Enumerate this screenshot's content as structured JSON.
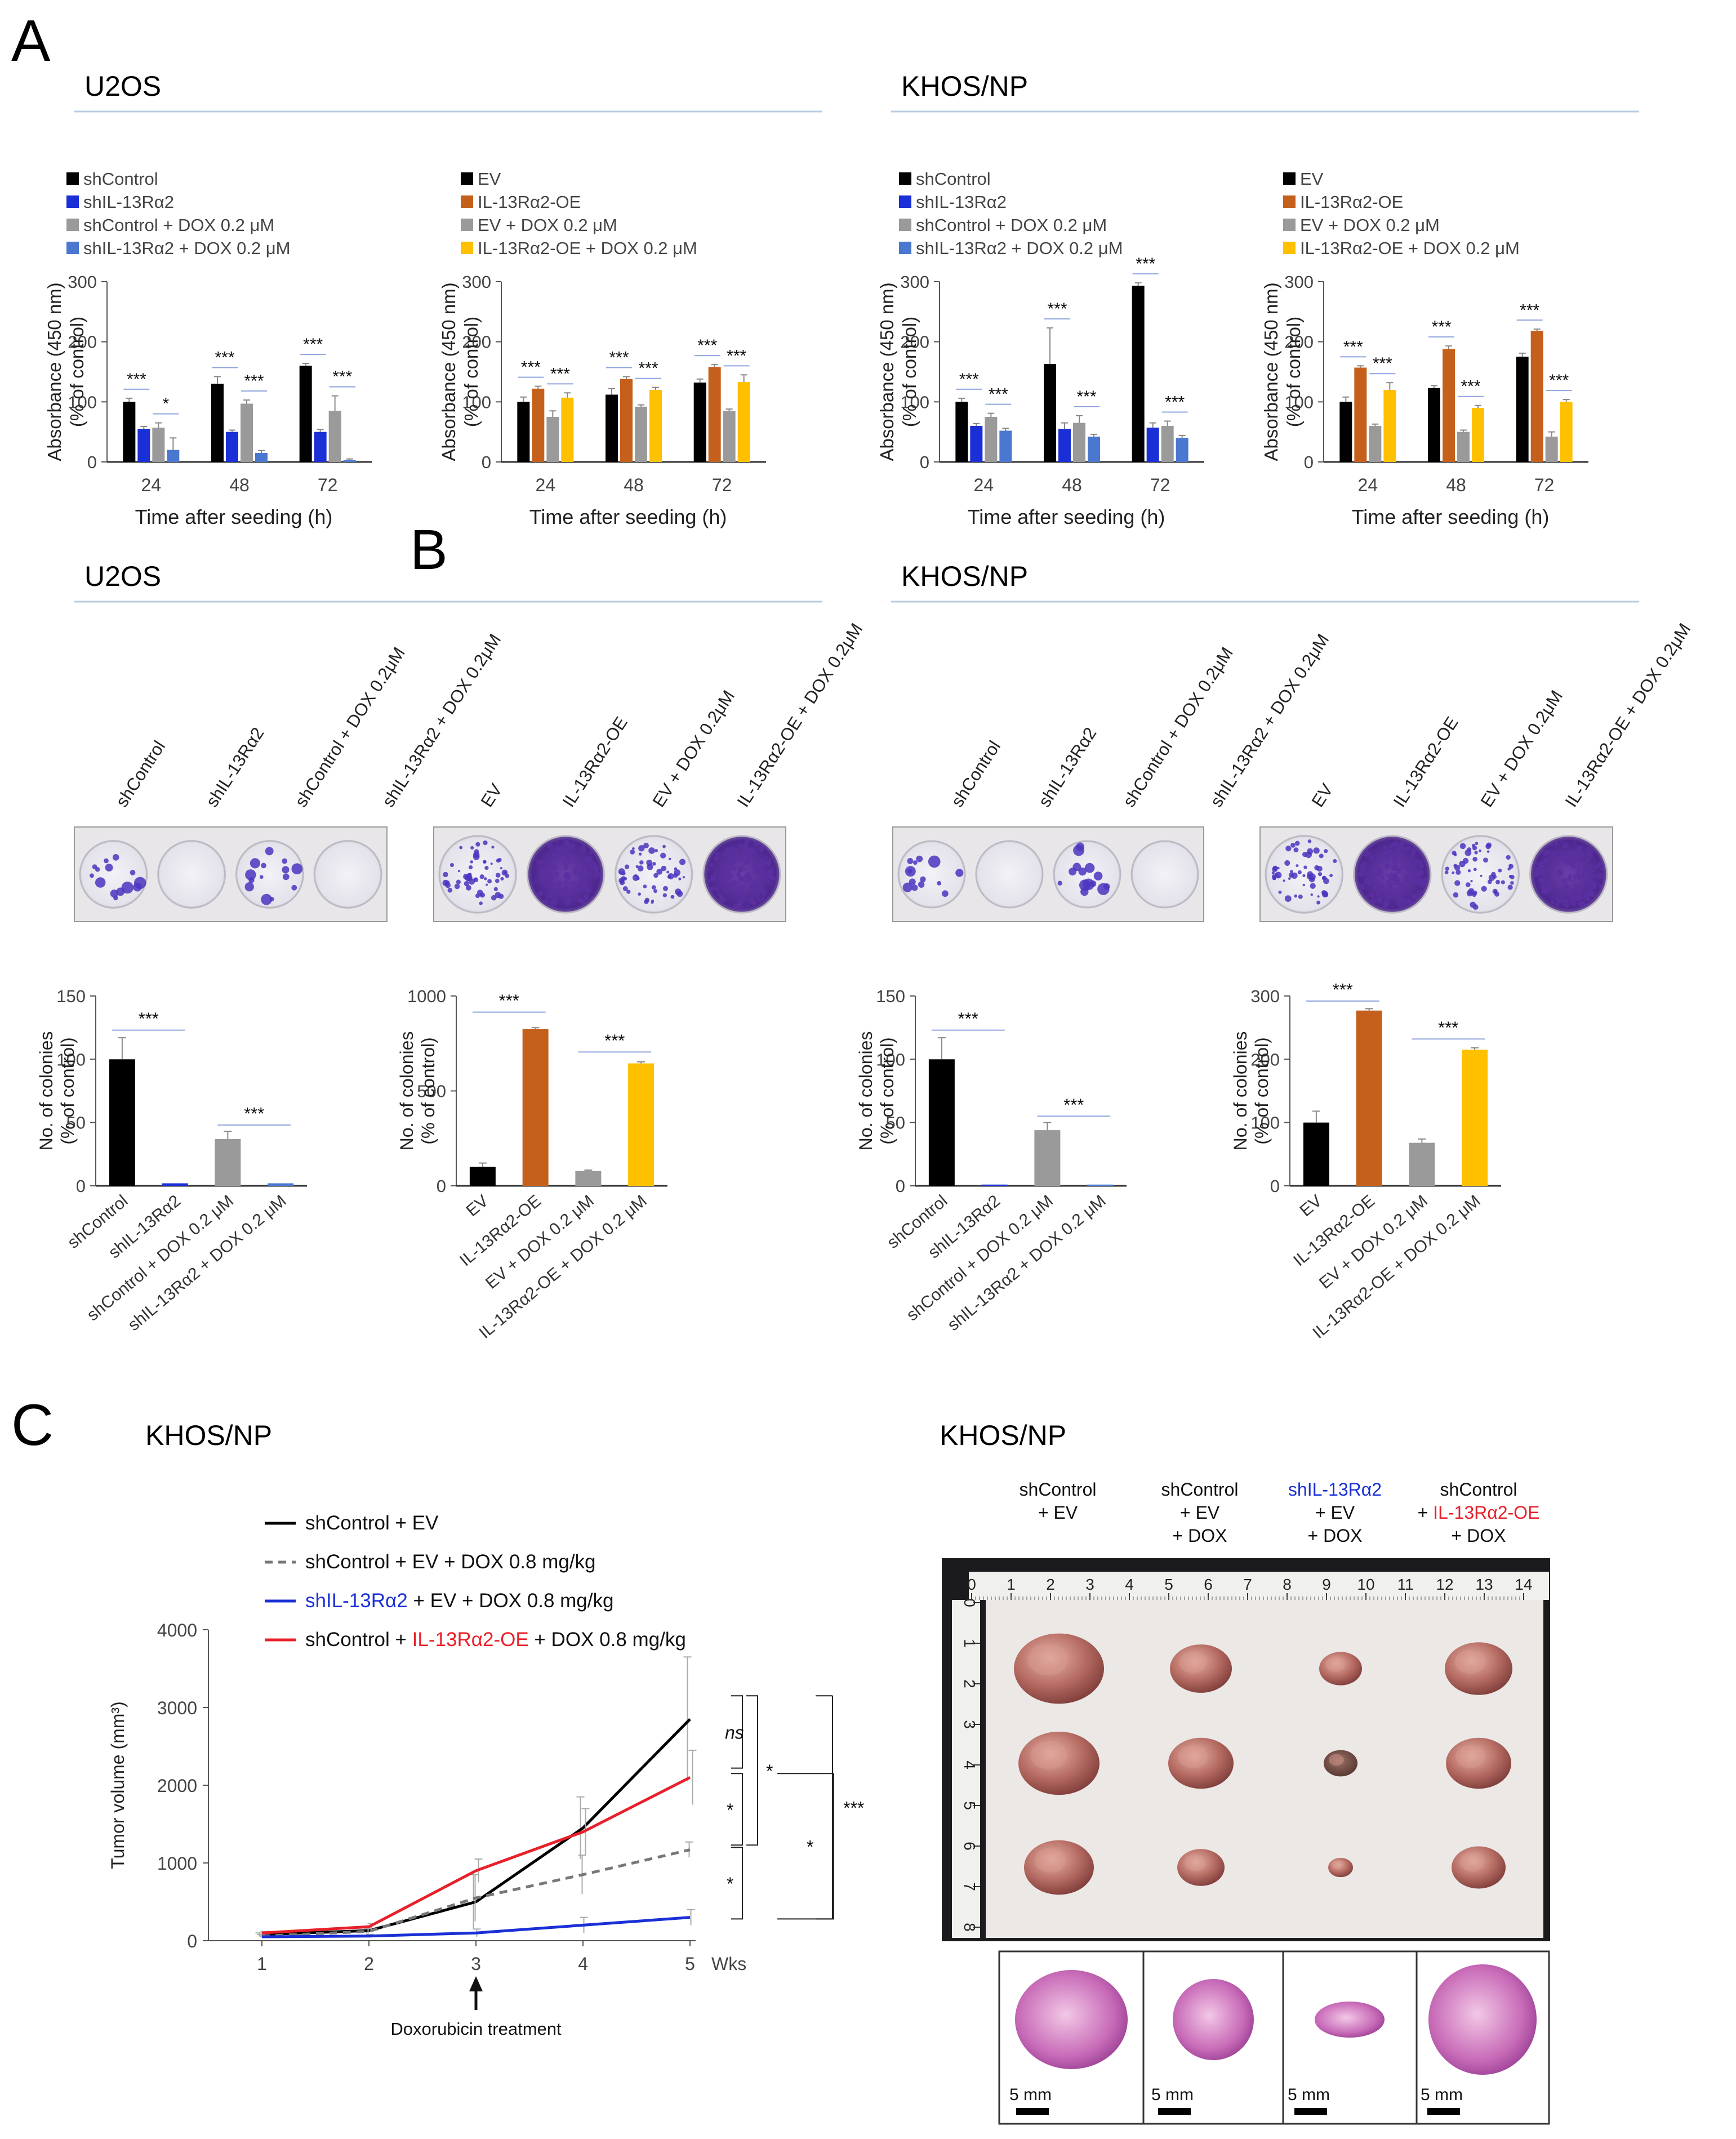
{
  "panel_letters": {
    "a": "A",
    "b": "B",
    "c": "C"
  },
  "headers": {
    "u2os": "U2OS",
    "khos": "KHOS/NP"
  },
  "absorbance_axis": {
    "ylabel1": "Absorbance (450 nm)",
    "ylabel2": "(% of control)",
    "xlabel": "Time after seeding (h)",
    "yticks": [
      "0",
      "100",
      "200",
      "300"
    ],
    "xticks": [
      "24",
      "48",
      "72"
    ]
  },
  "colony_axis": {
    "ylabel1": "No. of colonies",
    "ylabel2": "(% of control)"
  },
  "sig": {
    "three": "***",
    "one": "*",
    "ns": "ns"
  },
  "colors": {
    "black": "#000000",
    "blue": "#1a2fd6",
    "gray": "#9a9a9a",
    "lightblue": "#4a78d0",
    "orange": "#c5601c",
    "yellow": "#ffc000",
    "red": "#e8202a",
    "sig_line": "#8fa4dc"
  },
  "legend_sh": [
    "shControl",
    "shIL-13Rα2",
    "shControl + DOX 0.2 μM",
    "shIL-13Rα2 + DOX 0.2 μM"
  ],
  "legend_oe": [
    "EV",
    "IL-13Rα2-OE",
    "EV + DOX 0.2 μM",
    "IL-13Rα2-OE + DOX 0.2 μM"
  ],
  "plate_labels_sh": [
    "shControl",
    "shIL-13Rα2",
    "shControl + DOX 0.2μM",
    "shIL-13Rα2 + DOX 0.2μM"
  ],
  "plate_labels_oe": [
    "EV",
    "IL-13Rα2-OE",
    "EV + DOX 0.2μM",
    "IL-13Rα2-OE + DOX 0.2μM"
  ],
  "chart_data": [
    {
      "id": "A1",
      "type": "bar",
      "cell_line": "U2OS",
      "categories": [
        "24",
        "48",
        "72"
      ],
      "xlabel": "Time after seeding (h)",
      "ylabel": "Absorbance (450 nm) (% of control)",
      "ylim": [
        0,
        300
      ],
      "series": [
        {
          "name": "shControl",
          "values": [
            100,
            130,
            160
          ]
        },
        {
          "name": "shIL-13Rα2",
          "values": [
            55,
            50,
            50
          ]
        },
        {
          "name": "shControl + DOX 0.2 μM",
          "values": [
            57,
            97,
            85
          ]
        },
        {
          "name": "shIL-13Rα2 + DOX 0.2 μM",
          "values": [
            20,
            15,
            3
          ]
        }
      ],
      "annotations": [
        "***",
        "*",
        "***",
        "***",
        "***",
        "***"
      ]
    },
    {
      "id": "A2",
      "type": "bar",
      "cell_line": "U2OS",
      "categories": [
        "24",
        "48",
        "72"
      ],
      "xlabel": "Time after seeding (h)",
      "ylabel": "Absorbance (450 nm) (% of control)",
      "ylim": [
        0,
        300
      ],
      "series": [
        {
          "name": "EV",
          "values": [
            100,
            112,
            132
          ]
        },
        {
          "name": "IL-13Rα2-OE",
          "values": [
            122,
            138,
            158
          ]
        },
        {
          "name": "EV + DOX 0.2 μM",
          "values": [
            75,
            92,
            85
          ]
        },
        {
          "name": "IL-13Rα2-OE + DOX 0.2 μM",
          "values": [
            107,
            120,
            133
          ]
        }
      ],
      "annotations": [
        "***",
        "***",
        "***",
        "***",
        "***",
        "***"
      ]
    },
    {
      "id": "A3",
      "type": "bar",
      "cell_line": "KHOS/NP",
      "categories": [
        "24",
        "48",
        "72"
      ],
      "xlabel": "Time after seeding (h)",
      "ylabel": "Absorbance (450 nm) (% of control)",
      "ylim": [
        0,
        300
      ],
      "series": [
        {
          "name": "shControl",
          "values": [
            100,
            163,
            293
          ]
        },
        {
          "name": "shIL-13Rα2",
          "values": [
            60,
            55,
            57
          ]
        },
        {
          "name": "shControl + DOX 0.2 μM",
          "values": [
            75,
            65,
            60
          ]
        },
        {
          "name": "shIL-13Rα2 + DOX 0.2 μM",
          "values": [
            52,
            42,
            40
          ]
        }
      ],
      "annotations": [
        "***",
        "***",
        "***",
        "***",
        "***",
        "***"
      ]
    },
    {
      "id": "A4",
      "type": "bar",
      "cell_line": "KHOS/NP",
      "categories": [
        "24",
        "48",
        "72"
      ],
      "xlabel": "Time after seeding (h)",
      "ylabel": "Absorbance (450 nm) (% of control)",
      "ylim": [
        0,
        300
      ],
      "series": [
        {
          "name": "EV",
          "values": [
            100,
            123,
            175
          ]
        },
        {
          "name": "IL-13Rα2-OE",
          "values": [
            157,
            188,
            218
          ]
        },
        {
          "name": "EV + DOX 0.2 μM",
          "values": [
            60,
            50,
            42
          ]
        },
        {
          "name": "IL-13Rα2-OE + DOX 0.2 μM",
          "values": [
            120,
            90,
            100
          ]
        }
      ],
      "annotations": [
        "***",
        "***",
        "***",
        "***",
        "***",
        "***"
      ]
    },
    {
      "id": "B1",
      "type": "bar",
      "cell_line": "U2OS",
      "categories": [
        "shControl",
        "shIL-13Rα2",
        "shControl + DOX 0.2 μM",
        "shIL-13Rα2 + DOX 0.2 μM"
      ],
      "ylabel": "No. of colonies (% of control)",
      "ylim": [
        0,
        150
      ],
      "yticks": [
        "0",
        "50",
        "100",
        "150"
      ],
      "values": [
        100,
        2,
        37,
        2
      ],
      "annotations": [
        "***",
        "***"
      ]
    },
    {
      "id": "B2",
      "type": "bar",
      "cell_line": "U2OS",
      "categories": [
        "EV",
        "IL-13Rα2-OE",
        "EV + DOX 0.2 μM",
        "IL-13Rα2-OE + DOX 0.2 μM"
      ],
      "ylabel": "No. of colonies (% of control)",
      "ylim": [
        0,
        1000
      ],
      "yticks": [
        "0",
        "500",
        "1000"
      ],
      "values": [
        100,
        825,
        78,
        645
      ],
      "annotations": [
        "***",
        "***"
      ]
    },
    {
      "id": "B3",
      "type": "bar",
      "cell_line": "KHOS/NP",
      "categories": [
        "shControl",
        "shIL-13Rα2",
        "shControl + DOX 0.2 μM",
        "shIL-13Rα2 + DOX 0.2 μM"
      ],
      "ylabel": "No. of colonies (% of control)",
      "ylim": [
        0,
        150
      ],
      "yticks": [
        "0",
        "50",
        "100",
        "150"
      ],
      "values": [
        100,
        1,
        44,
        1
      ],
      "annotations": [
        "***",
        "***"
      ]
    },
    {
      "id": "B4",
      "type": "bar",
      "cell_line": "KHOS/NP",
      "categories": [
        "EV",
        "IL-13Rα2-OE",
        "EV + DOX 0.2 μM",
        "IL-13Rα2-OE + DOX 0.2 μM"
      ],
      "ylabel": "No. of colonies (% of control)",
      "ylim": [
        0,
        300
      ],
      "yticks": [
        "0",
        "100",
        "200",
        "300"
      ],
      "values": [
        100,
        277,
        68,
        215
      ],
      "annotations": [
        "***",
        "***"
      ]
    },
    {
      "id": "C",
      "type": "line",
      "cell_line": "KHOS/NP",
      "x": [
        1,
        2,
        3,
        4,
        5
      ],
      "xunit": "Wks",
      "ylabel": "Tumor volume (mm³)",
      "ylim": [
        0,
        4000
      ],
      "yticks": [
        "0",
        "1000",
        "2000",
        "3000",
        "4000"
      ],
      "series": [
        {
          "name": "shControl + EV",
          "values": [
            80,
            130,
            500,
            1450,
            2850
          ],
          "error": [
            20,
            40,
            350,
            400,
            800
          ]
        },
        {
          "name": "shControl + EV + DOX 0.8 mg/kg",
          "values": [
            60,
            120,
            550,
            850,
            1170
          ],
          "error": [
            20,
            40,
            300,
            250,
            100
          ]
        },
        {
          "name": "shIL-13Rα2 + EV + DOX 0.8 mg/kg",
          "values": [
            50,
            60,
            100,
            200,
            300
          ],
          "error": [
            10,
            20,
            50,
            100,
            100
          ]
        },
        {
          "name": "shControl + IL-13Rα2-OE + DOX 0.8 mg/kg",
          "values": [
            100,
            180,
            900,
            1400,
            2100
          ],
          "error": [
            20,
            40,
            150,
            300,
            350
          ]
        }
      ],
      "annotation": "Doxorubicin treatment",
      "significance": [
        "ns",
        "*",
        "*",
        "*",
        "*",
        "***"
      ]
    }
  ],
  "panel_c": {
    "legend": [
      {
        "parts": [
          "shControl + EV"
        ]
      },
      {
        "parts": [
          "shControl + EV + DOX 0.8 mg/kg"
        ]
      },
      {
        "parts": [
          "shIL-13Rα2",
          " + EV + DOX 0.8 mg/kg"
        ]
      },
      {
        "parts": [
          "shControl + ",
          "IL-13Rα2-OE",
          " + DOX 0.8 mg/kg"
        ]
      }
    ],
    "xunit": "Wks",
    "arrow_label": "Doxorubicin treatment",
    "photo_cols": [
      [
        "shControl",
        "+ EV",
        ""
      ],
      [
        "shControl",
        "+ EV",
        "+ DOX"
      ],
      [
        "shIL-13Rα2",
        "+ EV",
        "+ DOX"
      ],
      [
        "shControl",
        "+ IL-13Rα2-OE",
        "+ DOX"
      ]
    ],
    "ruler_top": [
      "0",
      "1",
      "2",
      "3",
      "4",
      "5",
      "6",
      "7",
      "8",
      "9",
      "10",
      "11",
      "12",
      "13",
      "14"
    ],
    "ruler_left": [
      "0",
      "1",
      "2",
      "3",
      "4",
      "5",
      "6",
      "7",
      "8"
    ],
    "scale": "5 mm"
  }
}
